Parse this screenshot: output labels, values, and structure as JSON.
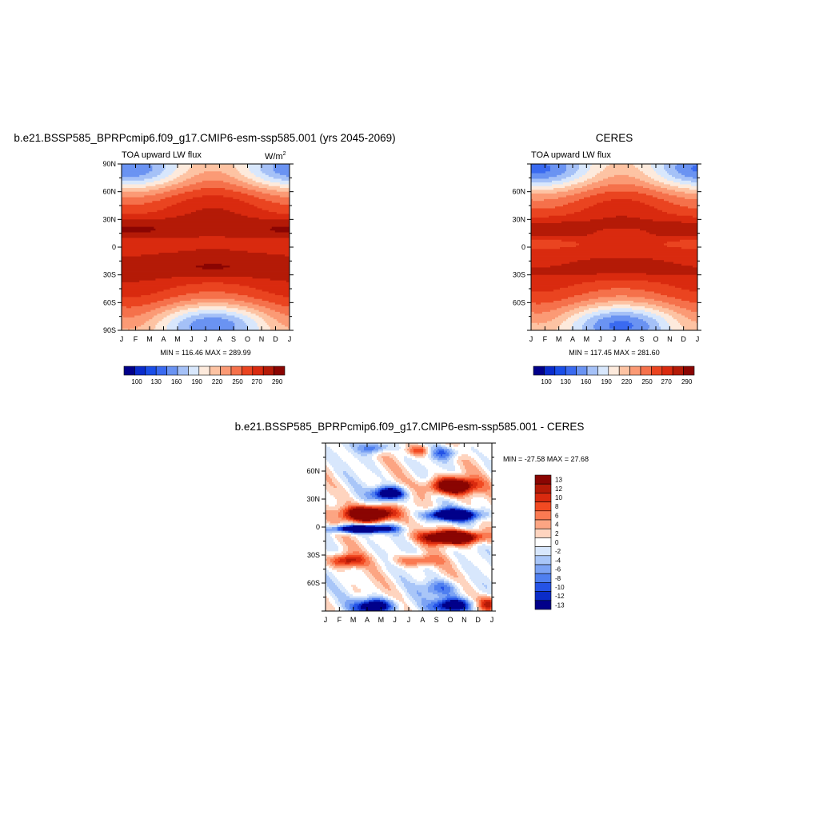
{
  "chart_data": [
    {
      "type": "heatmap",
      "title": "b.e21.BSSP585_BPRPcmip6.f09_g17.CMIP6-esm-ssp585.001 (yrs 2045-2069)",
      "subtitle": "TOA upward LW flux",
      "units_label": "W/m",
      "units_exp": "2",
      "x_ticks": [
        "J",
        "F",
        "M",
        "A",
        "M",
        "J",
        "J",
        "A",
        "S",
        "O",
        "N",
        "D",
        "J"
      ],
      "y_ticks": [
        "90N",
        "60N",
        "30N",
        "0",
        "30S",
        "60S",
        "90S"
      ],
      "stats": "MIN = 116.46 MAX = 289.99",
      "colorbar": {
        "colors": [
          "#01008a",
          "#0a2ccc",
          "#1a4ee8",
          "#3a6af0",
          "#6a93f2",
          "#a5c1f7",
          "#d8e7fc",
          "#fdeadc",
          "#fdc3a3",
          "#fb9a75",
          "#f5714b",
          "#ea4420",
          "#d92a0f",
          "#b41a07",
          "#8a0502"
        ],
        "labels": [
          "100",
          "130",
          "160",
          "190",
          "220",
          "250",
          "270",
          "290"
        ]
      },
      "vmin": 100,
      "vmax": 290
    },
    {
      "type": "heatmap",
      "title": "CERES",
      "subtitle": "TOA upward LW flux",
      "x_ticks": [
        "J",
        "F",
        "M",
        "A",
        "M",
        "J",
        "J",
        "A",
        "S",
        "O",
        "N",
        "D",
        "J"
      ],
      "y_ticks": [
        "60N",
        "30N",
        "0",
        "30S",
        "60S"
      ],
      "stats": "MIN = 117.45 MAX = 281.60",
      "colorbar": {
        "colors": [
          "#01008a",
          "#0a2ccc",
          "#1a4ee8",
          "#3a6af0",
          "#6a93f2",
          "#a5c1f7",
          "#d8e7fc",
          "#fdeadc",
          "#fdc3a3",
          "#fb9a75",
          "#f5714b",
          "#ea4420",
          "#d92a0f",
          "#b41a07",
          "#8a0502"
        ],
        "labels": [
          "100",
          "130",
          "160",
          "190",
          "220",
          "250",
          "270",
          "290"
        ]
      },
      "vmin": 100,
      "vmax": 290
    },
    {
      "type": "heatmap",
      "title": "b.e21.BSSP585_BPRPcmip6.f09_g17.CMIP6-esm-ssp585.001 - CERES",
      "x_ticks": [
        "J",
        "F",
        "M",
        "A",
        "M",
        "J",
        "J",
        "A",
        "S",
        "O",
        "N",
        "D",
        "J"
      ],
      "y_ticks": [
        "60N",
        "30N",
        "0",
        "30S",
        "60S"
      ],
      "stats": "MIN = -27.58 MAX =  27.68",
      "colorbar": {
        "colors": [
          "#8a0502",
          "#b41a07",
          "#d92a0f",
          "#f24a22",
          "#fa7a52",
          "#fca583",
          "#fed4bf",
          "#ffffff",
          "#d8e7fc",
          "#a9c6f8",
          "#7ca3f4",
          "#4f7ff0",
          "#2553e6",
          "#0b2cc8",
          "#01008a"
        ],
        "labels": [
          "13",
          "12",
          "10",
          "8",
          "6",
          "4",
          "2",
          "0",
          "-2",
          "-4",
          "-6",
          "-8",
          "-10",
          "-12",
          "-13"
        ]
      },
      "vmin": -14,
      "vmax": 14
    }
  ]
}
